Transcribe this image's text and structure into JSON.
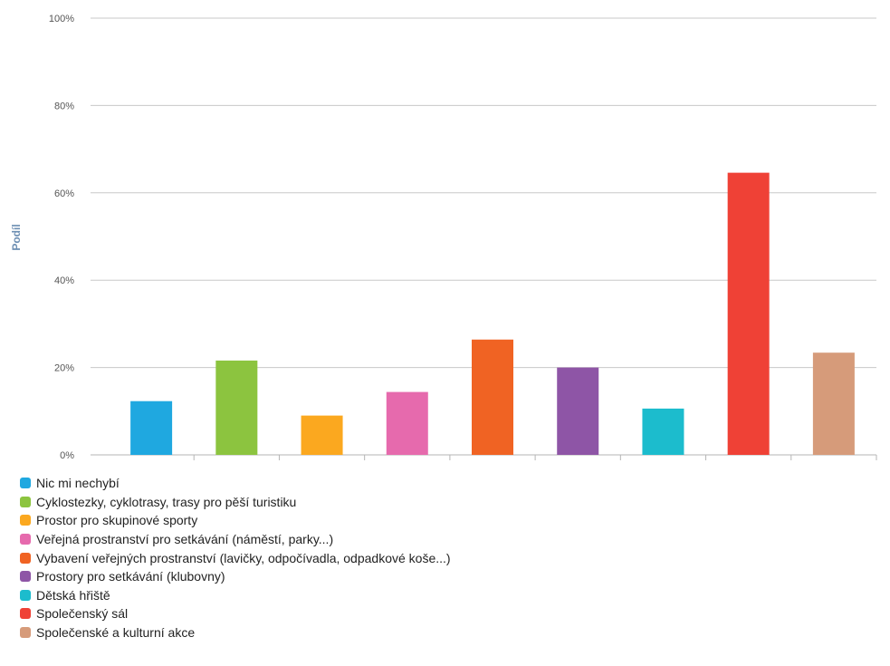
{
  "chart_data": {
    "type": "bar",
    "ylabel": "Podíl",
    "ylim": [
      0,
      100
    ],
    "yticks": [
      0,
      20,
      40,
      60,
      80,
      100
    ],
    "ytick_suffix": "%",
    "grid": true,
    "legend_position": "bottom-left",
    "categories": [
      "Nic mi nechybí",
      "Cyklostezky, cyklotrasy, trasy pro pěší turistiku",
      "Prostor pro skupinové sporty",
      "Veřejná prostranství pro setkávání (náměstí, parky...)",
      "Vybavení veřejných prostranství (lavičky, odpočívadla, odpadkové koše...)",
      "Prostory pro setkávání (klubovny)",
      "Dětská hřiště",
      "Společenský sál",
      "Společenské a kulturní akce"
    ],
    "values": [
      12.3,
      21.6,
      9.0,
      14.4,
      26.4,
      20.0,
      10.6,
      64.6,
      23.4
    ],
    "colors": [
      "#1fa8e0",
      "#8cc43f",
      "#fba81f",
      "#e66aad",
      "#f06323",
      "#8e55a6",
      "#1cbccd",
      "#ef4136",
      "#d69b7a"
    ]
  }
}
